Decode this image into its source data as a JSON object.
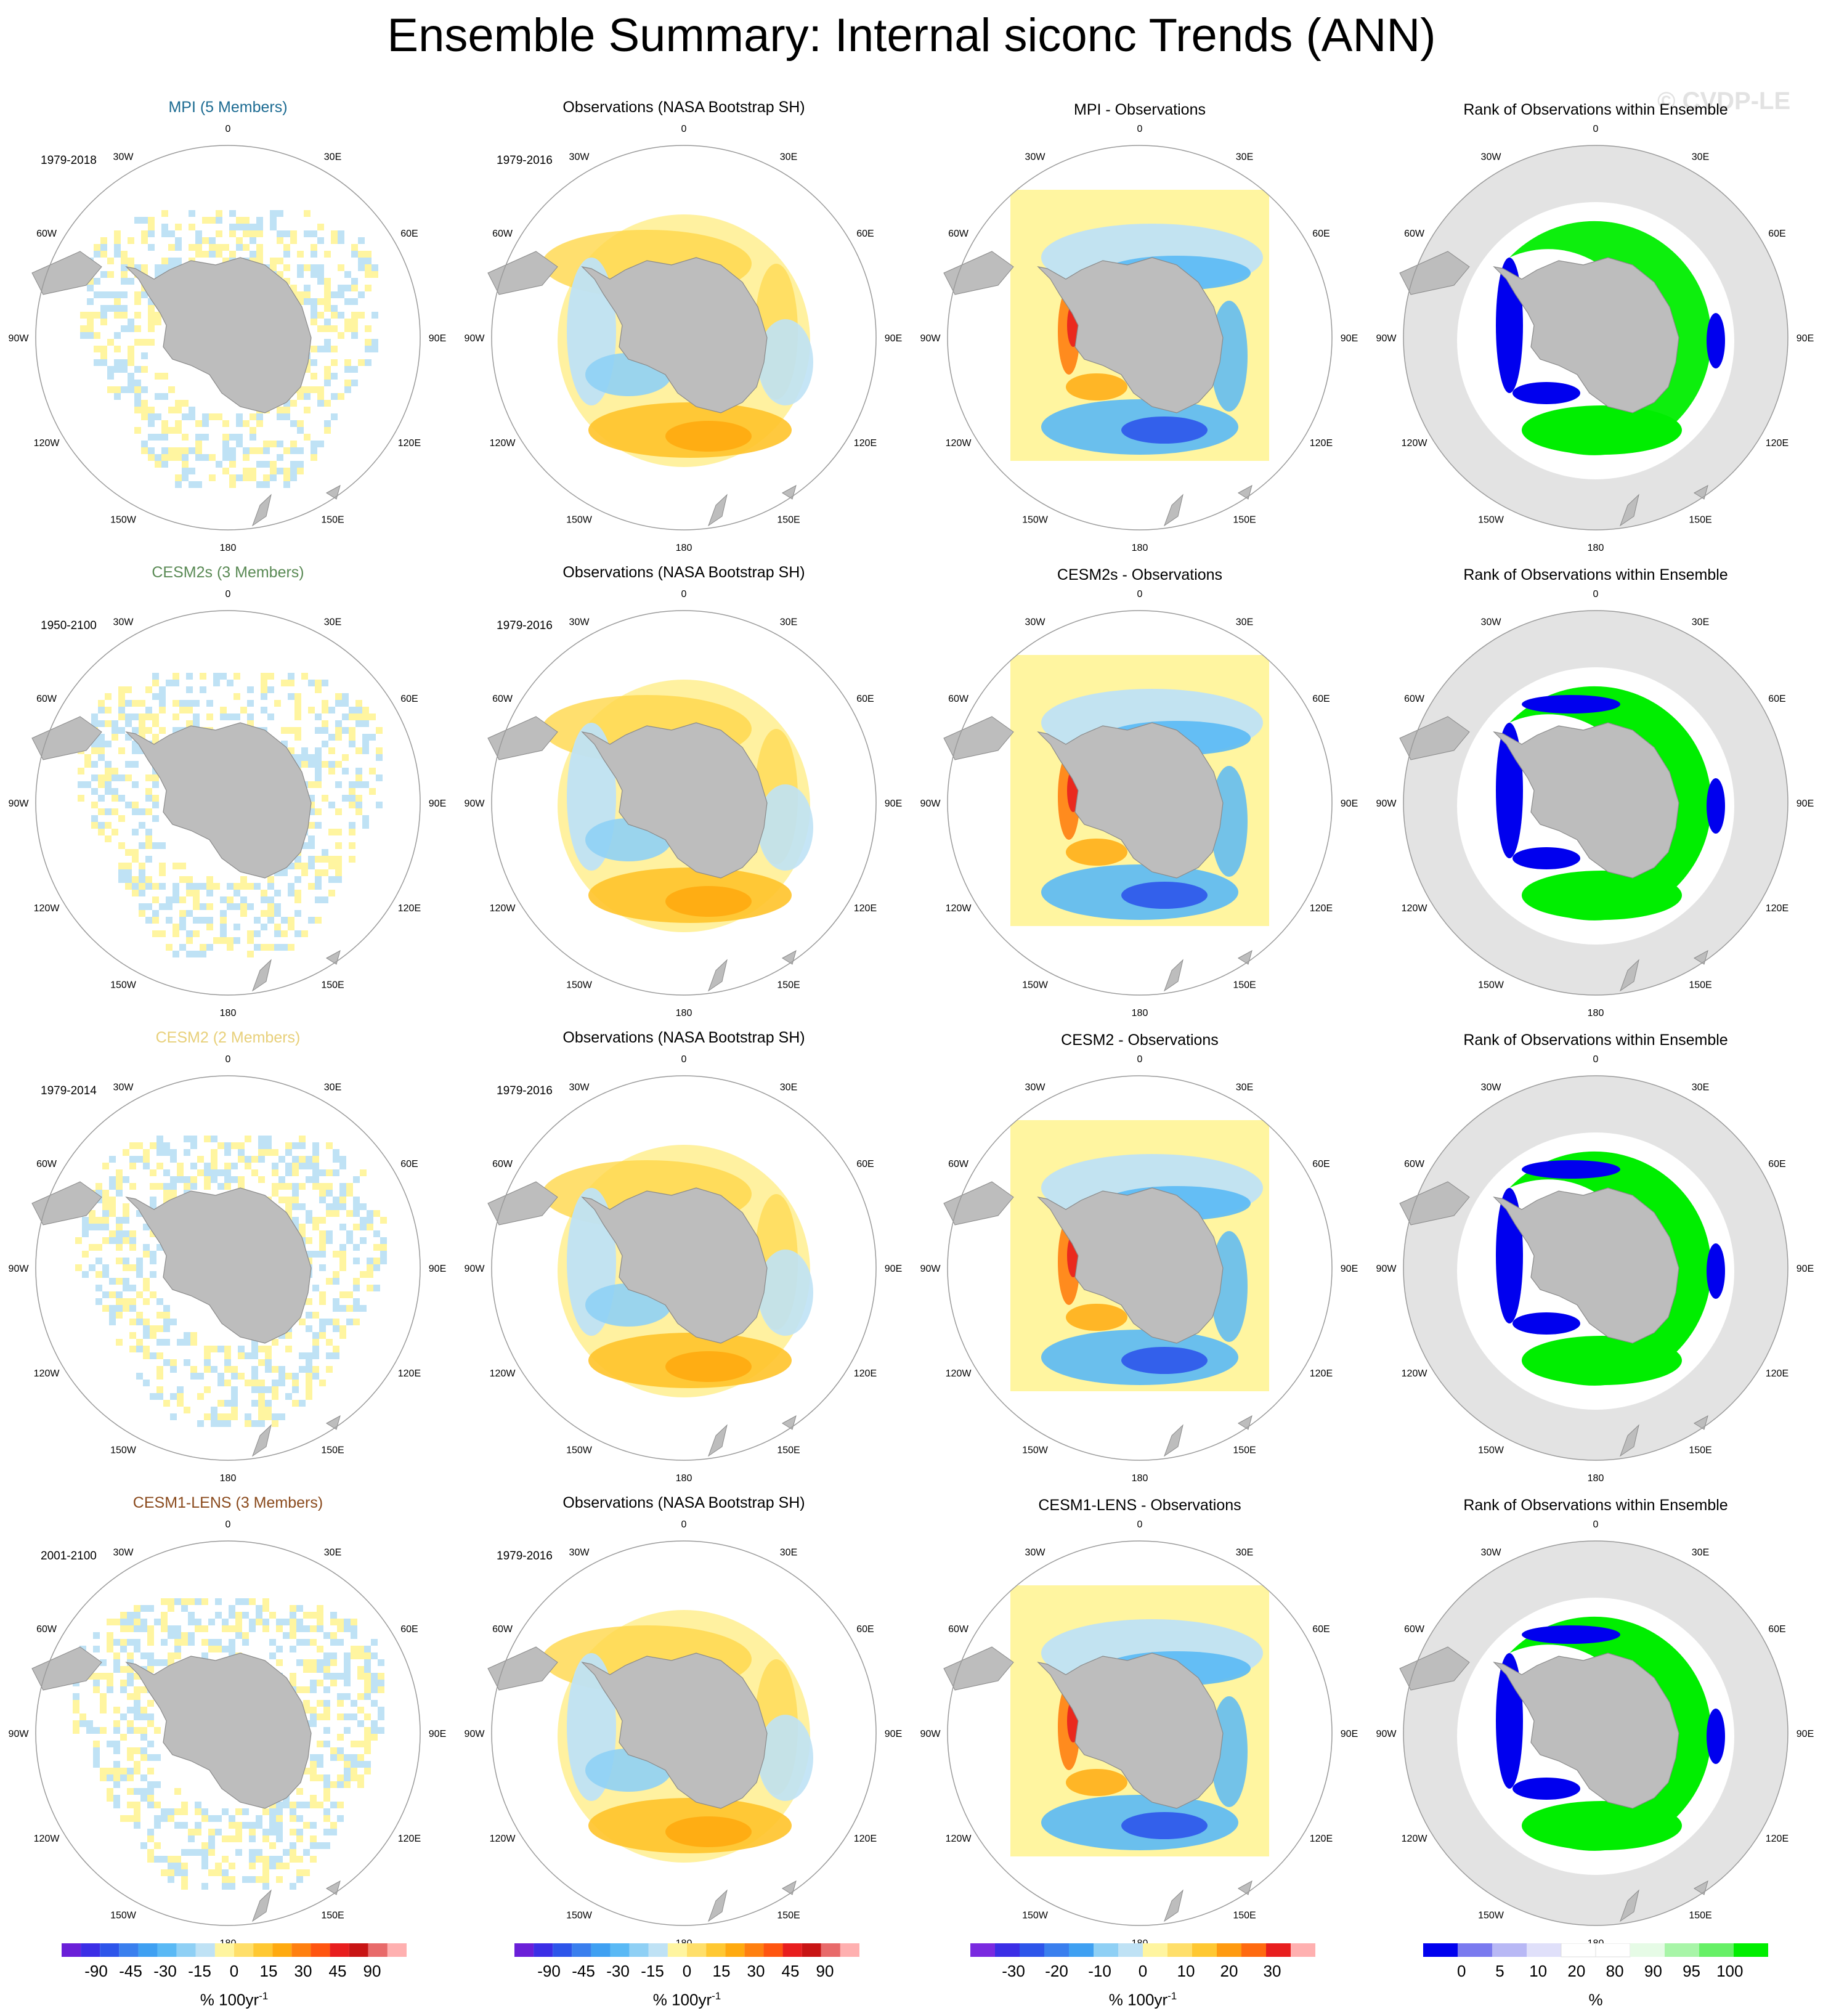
{
  "title": "Ensemble Summary: Internal siconc Trends (ANN)",
  "watermark": "© CVDP-LE",
  "lon_labels": [
    "0",
    "30E",
    "60E",
    "90E",
    "120E",
    "150E",
    "180",
    "150W",
    "120W",
    "90W",
    "60W",
    "30W"
  ],
  "colors": {
    "land": "#bdbdbd",
    "ocean_gray": "#e3e3e3",
    "yellow_fill": "#fff5a0",
    "mpi_title": "#1c6b92",
    "cesm2s_title": "#5a8a55",
    "cesm2_title": "#e8d07a",
    "cesm1_title": "#8a4a1d"
  },
  "rows": [
    {
      "model_title": "MPI (5 Members)",
      "model_period": "1979-2018",
      "obs_title": "Observations (NASA Bootstrap SH)",
      "obs_period": "1979-2016",
      "diff_title": "MPI - Observations",
      "rank_title": "Rank of Observations within Ensemble"
    },
    {
      "model_title": "CESM2s (3 Members)",
      "model_period": "1950-2100",
      "obs_title": "Observations (NASA Bootstrap SH)",
      "obs_period": "1979-2016",
      "diff_title": "CESM2s - Observations",
      "rank_title": "Rank of Observations within Ensemble"
    },
    {
      "model_title": "CESM2 (2 Members)",
      "model_period": "1979-2014",
      "obs_title": "Observations (NASA Bootstrap SH)",
      "obs_period": "1979-2016",
      "diff_title": "CESM2 - Observations",
      "rank_title": "Rank of Observations within Ensemble"
    },
    {
      "model_title": "CESM1-LENS (3 Members)",
      "model_period": "2001-2100",
      "obs_title": "Observations (NASA Bootstrap SH)",
      "obs_period": "1979-2016",
      "diff_title": "CESM1-LENS - Observations",
      "rank_title": "Rank of Observations within Ensemble"
    }
  ],
  "colorbars": [
    {
      "units_main": "% 100yr",
      "units_sup": "-1",
      "labels": [
        "-90",
        "-45",
        "-30",
        "-15",
        "0",
        "15",
        "30",
        "45",
        "90"
      ],
      "colors": [
        "#6a1fd8",
        "#3b2ee6",
        "#2d55ea",
        "#3a7fee",
        "#3fa0f2",
        "#5ab9f5",
        "#8fd0f5",
        "#bfe2f5",
        "#fff5a0",
        "#ffdf6a",
        "#ffc832",
        "#ffaa10",
        "#ff8010",
        "#ff5510",
        "#e81e1e",
        "#c81414",
        "#e86a6a",
        "#ffb0b0"
      ]
    },
    {
      "units_main": "% 100yr",
      "units_sup": "-1",
      "labels": [
        "-90",
        "-45",
        "-30",
        "-15",
        "0",
        "15",
        "30",
        "45",
        "90"
      ],
      "colors": [
        "#6a1fd8",
        "#3b2ee6",
        "#2d55ea",
        "#3a7fee",
        "#3fa0f2",
        "#5ab9f5",
        "#8fd0f5",
        "#bfe2f5",
        "#fff5a0",
        "#ffdf6a",
        "#ffc832",
        "#ffaa10",
        "#ff8010",
        "#ff5510",
        "#e81e1e",
        "#c81414",
        "#e86a6a",
        "#ffb0b0"
      ]
    },
    {
      "units_main": "% 100yr",
      "units_sup": "-1",
      "labels": [
        "-30",
        "-20",
        "-10",
        "0",
        "10",
        "20",
        "30"
      ],
      "colors": [
        "#7a2ae0",
        "#3b2ee6",
        "#2d55ea",
        "#3a7fee",
        "#3fa0f2",
        "#8fd0f5",
        "#bfe2f5",
        "#fff5a0",
        "#ffdf6a",
        "#ffc832",
        "#ff9a10",
        "#ff6a10",
        "#e81e1e",
        "#ffb0b0"
      ]
    },
    {
      "units_main": "%",
      "units_sup": "",
      "labels": [
        "0",
        "5",
        "10",
        "20",
        "80",
        "90",
        "95",
        "100"
      ],
      "colors": [
        "#0000ee",
        "#7a7aef",
        "#b8b8f5",
        "#e0e0fa",
        "#ffffff",
        "#ffffff",
        "#e6fbe6",
        "#a8f5a8",
        "#66f066",
        "#00ee00"
      ]
    }
  ]
}
